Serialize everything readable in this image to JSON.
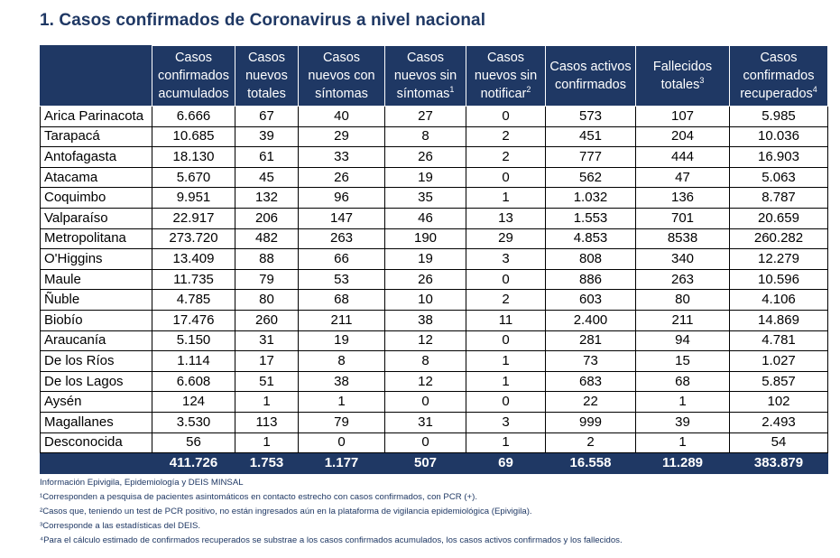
{
  "title": "1. Casos confirmados de Coronavirus a nivel nacional",
  "headers": [
    {
      "text": "Casos confirmados acumulados",
      "sup": ""
    },
    {
      "text": "Casos nuevos totales",
      "sup": ""
    },
    {
      "text": "Casos nuevos con síntomas",
      "sup": ""
    },
    {
      "text": "Casos nuevos sin síntomas",
      "sup": "1"
    },
    {
      "text": "Casos nuevos sin notificar",
      "sup": "2"
    },
    {
      "text": "Casos activos confirmados",
      "sup": ""
    },
    {
      "text": "Fallecidos totales",
      "sup": "3"
    },
    {
      "text": "Casos confirmados recuperados",
      "sup": "4"
    }
  ],
  "rows": [
    [
      "Arica Parinacota",
      "6.666",
      "67",
      "40",
      "27",
      "0",
      "573",
      "107",
      "5.985"
    ],
    [
      "Tarapacá",
      "10.685",
      "39",
      "29",
      "8",
      "2",
      "451",
      "204",
      "10.036"
    ],
    [
      "Antofagasta",
      "18.130",
      "61",
      "33",
      "26",
      "2",
      "777",
      "444",
      "16.903"
    ],
    [
      "Atacama",
      "5.670",
      "45",
      "26",
      "19",
      "0",
      "562",
      "47",
      "5.063"
    ],
    [
      "Coquimbo",
      "9.951",
      "132",
      "96",
      "35",
      "1",
      "1.032",
      "136",
      "8.787"
    ],
    [
      "Valparaíso",
      "22.917",
      "206",
      "147",
      "46",
      "13",
      "1.553",
      "701",
      "20.659"
    ],
    [
      "Metropolitana",
      "273.720",
      "482",
      "263",
      "190",
      "29",
      "4.853",
      "8538",
      "260.282"
    ],
    [
      "O'Higgins",
      "13.409",
      "88",
      "66",
      "19",
      "3",
      "808",
      "340",
      "12.279"
    ],
    [
      "Maule",
      "11.735",
      "79",
      "53",
      "26",
      "0",
      "886",
      "263",
      "10.596"
    ],
    [
      "Ñuble",
      "4.785",
      "80",
      "68",
      "10",
      "2",
      "603",
      "80",
      "4.106"
    ],
    [
      "Biobío",
      "17.476",
      "260",
      "211",
      "38",
      "11",
      "2.400",
      "211",
      "14.869"
    ],
    [
      "Araucanía",
      "5.150",
      "31",
      "19",
      "12",
      "0",
      "281",
      "94",
      "4.781"
    ],
    [
      "De los Ríos",
      "1.114",
      "17",
      "8",
      "8",
      "1",
      "73",
      "15",
      "1.027"
    ],
    [
      "De los Lagos",
      "6.608",
      "51",
      "38",
      "12",
      "1",
      "683",
      "68",
      "5.857"
    ],
    [
      "Aysén",
      "124",
      "1",
      "1",
      "0",
      "0",
      "22",
      "1",
      "102"
    ],
    [
      "Magallanes",
      "3.530",
      "113",
      "79",
      "31",
      "3",
      "999",
      "39",
      "2.493"
    ],
    [
      "Desconocida",
      "56",
      "1",
      "0",
      "0",
      "1",
      "2",
      "1",
      "54"
    ]
  ],
  "totals": [
    "",
    "411.726",
    "1.753",
    "1.177",
    "507",
    "69",
    "16.558",
    "11.289",
    "383.879"
  ],
  "notes": [
    "Información Epivigila, Epidemiología y DEIS MINSAL",
    "¹Corresponden a pesquisa de pacientes asintomáticos en contacto estrecho con casos confirmados, con PCR (+).",
    "²Casos que, teniendo un test de PCR positivo, no están ingresados aún en la plataforma de vigilancia epidemiológica (Epivigila).",
    "³Corresponde a las estadísticas del DEIS.",
    "⁴Para el cálculo estimado de confirmados recuperados se substrae a los casos confirmados acumulados, los casos activos confirmados y los fallecidos."
  ]
}
